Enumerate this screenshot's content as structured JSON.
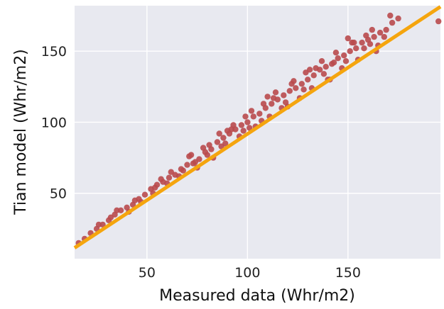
{
  "chart_data": {
    "type": "scatter",
    "title": "",
    "xlabel": "Measured data (Whr/m2)",
    "ylabel": "Tian model (Whr/m2)",
    "xlim": [
      14,
      196
    ],
    "ylim": [
      4,
      182
    ],
    "x_ticks": [
      50,
      100,
      150
    ],
    "y_ticks": [
      50,
      100,
      150
    ],
    "x_tick_labels": [
      "50",
      "100",
      "150"
    ],
    "y_tick_labels": [
      "50",
      "100",
      "150"
    ],
    "grid": true,
    "legend": "none",
    "series": [
      {
        "kind": "points",
        "color": "#b94a4c",
        "x": [
          16,
          19,
          22,
          25,
          28,
          31,
          34,
          37,
          40,
          43,
          46,
          49,
          52,
          55,
          58,
          61,
          64,
          67,
          70,
          73,
          76,
          79,
          82,
          85,
          88,
          91,
          94,
          97,
          100,
          103,
          106,
          109,
          112,
          115,
          118,
          121,
          124,
          127,
          130,
          133,
          136,
          139,
          142,
          145,
          148,
          151,
          154,
          157,
          160,
          163,
          166,
          169,
          172,
          175,
          26,
          32,
          41,
          47,
          53,
          57,
          62,
          66,
          71,
          75,
          78,
          83,
          86,
          89,
          93,
          96,
          99,
          104,
          108,
          111,
          114,
          117,
          122,
          126,
          129,
          132,
          137,
          141,
          144,
          147,
          152,
          155,
          158,
          162,
          165,
          35,
          44,
          54,
          60,
          68,
          74,
          81,
          87,
          92,
          98,
          102,
          107,
          113,
          119,
          123,
          128,
          134,
          138,
          143,
          149,
          153,
          159,
          164,
          168,
          72,
          80,
          90,
          101,
          110,
          120,
          131,
          140,
          150,
          161,
          171,
          195
        ],
        "y": [
          15,
          18,
          22,
          25,
          28,
          31,
          35,
          38,
          40,
          42,
          46,
          49,
          53,
          56,
          58,
          61,
          63,
          67,
          70,
          71,
          74,
          79,
          81,
          86,
          89,
          92,
          95,
          98,
          100,
          104,
          106,
          110,
          113,
          116,
          119,
          122,
          124,
          127,
          130,
          133,
          137,
          139,
          141,
          145,
          147,
          150,
          152,
          156,
          158,
          160,
          163,
          165,
          170,
          173,
          28,
          33,
          37,
          44,
          50,
          60,
          65,
          62,
          76,
          68,
          82,
          75,
          92,
          85,
          98,
          90,
          104,
          97,
          113,
          104,
          121,
          110,
          127,
          117,
          135,
          124,
          143,
          130,
          149,
          138,
          156,
          144,
          152,
          165,
          154,
          38,
          45,
          54,
          57,
          66,
          72,
          84,
          83,
          95,
          94,
          108,
          101,
          117,
          114,
          129,
          123,
          138,
          134,
          142,
          143,
          156,
          161,
          150,
          160,
          77,
          77,
          94,
          96,
          118,
          111,
          137,
          130,
          159,
          155,
          175,
          171
        ]
      },
      {
        "kind": "fit-line",
        "color": "#f5a50e",
        "x": [
          14,
          196
        ],
        "y": [
          11.6,
          181.3
        ]
      }
    ]
  }
}
